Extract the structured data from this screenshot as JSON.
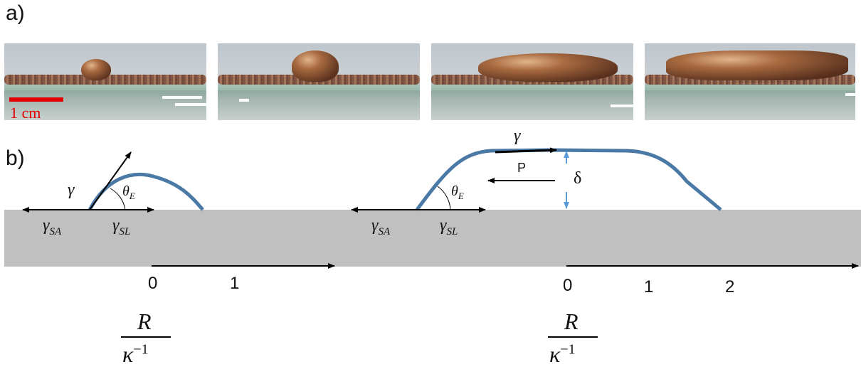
{
  "panel_labels": {
    "a": "a)",
    "b": "b)"
  },
  "scale_bar_label": "1 cm",
  "colors": {
    "substrate": "#c0c0c0",
    "drop_profile": "#4a79a5",
    "delta_arrow": "#5b9bd5",
    "scale_bar": "#e00000"
  },
  "small_drop": {
    "gamma": "γ",
    "theta": "θ",
    "theta_sub": "E",
    "gamma_sa": "γ",
    "gamma_sa_sub": "SA",
    "gamma_sl": "γ",
    "gamma_sl_sub": "SL",
    "axis_ticks": [
      "0",
      "1"
    ],
    "axis_label_num": "R",
    "axis_label_den": "κ",
    "axis_label_exp": "−1"
  },
  "puddle": {
    "gamma": "γ",
    "pressure": "P",
    "delta": "δ",
    "theta": "θ",
    "theta_sub": "E",
    "gamma_sa": "γ",
    "gamma_sa_sub": "SA",
    "gamma_sl": "γ",
    "gamma_sl_sub": "SL",
    "axis_ticks": [
      "0",
      "1",
      "2"
    ],
    "axis_label_num": "R",
    "axis_label_den": "κ",
    "axis_label_exp": "−1"
  }
}
